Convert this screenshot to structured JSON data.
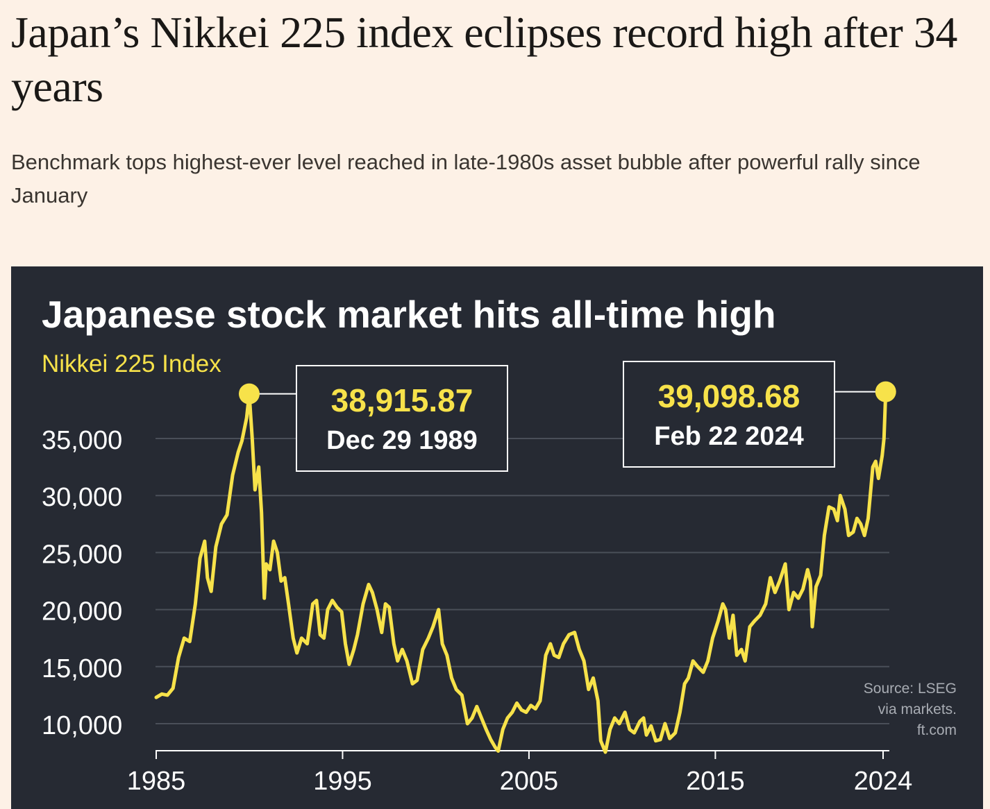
{
  "article": {
    "headline": "Japan’s Nikkei 225 index eclipses record high after 34 years",
    "standfirst": "Benchmark tops highest-ever level reached in late-1980s asset bubble after powerful rally since January"
  },
  "colors": {
    "page_background": "#fdf1e6",
    "panel_background": "#262a33",
    "series": "#f7e24a",
    "text_light": "#ffffff",
    "text_muted": "#a8acb3",
    "gridline": "#4a4f59"
  },
  "chart_data": {
    "type": "line",
    "title": "Japanese stock market hits all-time high",
    "subtitle": "Nikkei 225 Index",
    "xlabel": "",
    "ylabel": "",
    "xlim": [
      1985,
      2024.3
    ],
    "ylim": [
      7500,
      37000
    ],
    "x_ticks": [
      1985,
      1995,
      2005,
      2015,
      2024
    ],
    "x_tick_labels": [
      "1985",
      "1995",
      "2005",
      "2015",
      "2024"
    ],
    "y_ticks": [
      10000,
      15000,
      20000,
      25000,
      30000,
      35000
    ],
    "y_tick_labels": [
      "10,000",
      "15,000",
      "20,000",
      "25,000",
      "30,000",
      "35,000"
    ],
    "gridlines": true,
    "legend": "none",
    "source": [
      "Source: LSEG",
      "via markets.",
      "ft.com"
    ],
    "series": [
      {
        "name": "Nikkei 225 Index",
        "points": [
          [
            1985.0,
            12300
          ],
          [
            1985.3,
            12600
          ],
          [
            1985.6,
            12500
          ],
          [
            1985.9,
            13100
          ],
          [
            1986.2,
            15800
          ],
          [
            1986.5,
            17500
          ],
          [
            1986.8,
            17200
          ],
          [
            1987.1,
            20500
          ],
          [
            1987.35,
            24500
          ],
          [
            1987.6,
            26000
          ],
          [
            1987.75,
            22800
          ],
          [
            1987.95,
            21600
          ],
          [
            1988.2,
            25500
          ],
          [
            1988.5,
            27500
          ],
          [
            1988.8,
            28300
          ],
          [
            1989.1,
            31800
          ],
          [
            1989.4,
            33800
          ],
          [
            1989.6,
            34800
          ],
          [
            1989.85,
            36800
          ],
          [
            1989.99,
            38915.87
          ],
          [
            1990.15,
            35000
          ],
          [
            1990.3,
            30500
          ],
          [
            1990.5,
            32500
          ],
          [
            1990.65,
            28500
          ],
          [
            1990.8,
            21000
          ],
          [
            1990.9,
            24000
          ],
          [
            1991.1,
            23500
          ],
          [
            1991.3,
            26000
          ],
          [
            1991.5,
            25000
          ],
          [
            1991.7,
            22500
          ],
          [
            1991.9,
            22800
          ],
          [
            1992.1,
            20500
          ],
          [
            1992.35,
            17500
          ],
          [
            1992.55,
            16200
          ],
          [
            1992.8,
            17500
          ],
          [
            1993.1,
            17000
          ],
          [
            1993.4,
            20500
          ],
          [
            1993.6,
            20800
          ],
          [
            1993.8,
            17800
          ],
          [
            1994.0,
            17500
          ],
          [
            1994.2,
            20000
          ],
          [
            1994.45,
            20800
          ],
          [
            1994.7,
            20200
          ],
          [
            1994.95,
            19800
          ],
          [
            1995.15,
            17000
          ],
          [
            1995.35,
            15200
          ],
          [
            1995.6,
            16500
          ],
          [
            1995.8,
            17800
          ],
          [
            1996.1,
            20500
          ],
          [
            1996.4,
            22200
          ],
          [
            1996.6,
            21500
          ],
          [
            1996.85,
            20000
          ],
          [
            1997.1,
            18000
          ],
          [
            1997.3,
            20500
          ],
          [
            1997.5,
            20200
          ],
          [
            1997.75,
            17000
          ],
          [
            1997.95,
            15500
          ],
          [
            1998.2,
            16500
          ],
          [
            1998.45,
            15500
          ],
          [
            1998.75,
            13500
          ],
          [
            1999.0,
            13800
          ],
          [
            1999.3,
            16500
          ],
          [
            1999.6,
            17500
          ],
          [
            1999.85,
            18500
          ],
          [
            2000.15,
            20000
          ],
          [
            2000.35,
            17000
          ],
          [
            2000.6,
            16000
          ],
          [
            2000.85,
            14000
          ],
          [
            2001.1,
            13000
          ],
          [
            2001.4,
            12500
          ],
          [
            2001.7,
            10000
          ],
          [
            2001.95,
            10500
          ],
          [
            2002.2,
            11500
          ],
          [
            2002.45,
            10500
          ],
          [
            2002.7,
            9500
          ],
          [
            2002.95,
            8600
          ],
          [
            2003.2,
            7900
          ],
          [
            2003.35,
            7600
          ],
          [
            2003.6,
            9500
          ],
          [
            2003.85,
            10500
          ],
          [
            2004.1,
            11000
          ],
          [
            2004.35,
            11800
          ],
          [
            2004.6,
            11200
          ],
          [
            2004.85,
            11000
          ],
          [
            2005.1,
            11600
          ],
          [
            2005.35,
            11300
          ],
          [
            2005.6,
            12000
          ],
          [
            2005.9,
            16000
          ],
          [
            2006.15,
            17000
          ],
          [
            2006.35,
            16000
          ],
          [
            2006.6,
            15800
          ],
          [
            2006.85,
            17000
          ],
          [
            2007.15,
            17800
          ],
          [
            2007.45,
            18000
          ],
          [
            2007.7,
            16500
          ],
          [
            2007.95,
            15500
          ],
          [
            2008.2,
            13000
          ],
          [
            2008.45,
            14000
          ],
          [
            2008.7,
            12000
          ],
          [
            2008.85,
            8500
          ],
          [
            2009.1,
            7500
          ],
          [
            2009.35,
            9500
          ],
          [
            2009.6,
            10500
          ],
          [
            2009.85,
            10000
          ],
          [
            2010.15,
            11000
          ],
          [
            2010.4,
            9500
          ],
          [
            2010.65,
            9200
          ],
          [
            2010.95,
            10200
          ],
          [
            2011.15,
            10500
          ],
          [
            2011.3,
            9000
          ],
          [
            2011.55,
            9800
          ],
          [
            2011.8,
            8500
          ],
          [
            2012.05,
            8600
          ],
          [
            2012.3,
            10000
          ],
          [
            2012.55,
            8700
          ],
          [
            2012.85,
            9200
          ],
          [
            2013.1,
            11000
          ],
          [
            2013.35,
            13500
          ],
          [
            2013.55,
            14000
          ],
          [
            2013.8,
            15500
          ],
          [
            2014.05,
            15000
          ],
          [
            2014.35,
            14500
          ],
          [
            2014.6,
            15500
          ],
          [
            2014.85,
            17500
          ],
          [
            2015.15,
            19000
          ],
          [
            2015.4,
            20500
          ],
          [
            2015.55,
            20000
          ],
          [
            2015.75,
            17500
          ],
          [
            2015.95,
            19500
          ],
          [
            2016.15,
            16000
          ],
          [
            2016.4,
            16500
          ],
          [
            2016.6,
            15500
          ],
          [
            2016.85,
            18500
          ],
          [
            2017.1,
            19000
          ],
          [
            2017.4,
            19500
          ],
          [
            2017.7,
            20500
          ],
          [
            2017.95,
            22800
          ],
          [
            2018.2,
            21500
          ],
          [
            2018.45,
            22500
          ],
          [
            2018.75,
            24000
          ],
          [
            2018.95,
            20000
          ],
          [
            2019.2,
            21500
          ],
          [
            2019.45,
            21000
          ],
          [
            2019.7,
            21800
          ],
          [
            2019.95,
            23500
          ],
          [
            2020.1,
            22500
          ],
          [
            2020.2,
            18500
          ],
          [
            2020.4,
            22000
          ],
          [
            2020.65,
            23000
          ],
          [
            2020.85,
            26500
          ],
          [
            2021.1,
            29000
          ],
          [
            2021.35,
            28800
          ],
          [
            2021.55,
            27800
          ],
          [
            2021.7,
            30000
          ],
          [
            2021.95,
            28800
          ],
          [
            2022.15,
            26500
          ],
          [
            2022.4,
            26800
          ],
          [
            2022.6,
            28000
          ],
          [
            2022.8,
            27500
          ],
          [
            2023.0,
            26500
          ],
          [
            2023.2,
            28000
          ],
          [
            2023.45,
            32500
          ],
          [
            2023.6,
            33000
          ],
          [
            2023.75,
            31500
          ],
          [
            2023.95,
            33500
          ],
          [
            2024.05,
            35000
          ],
          [
            2024.14,
            39098.68
          ]
        ]
      }
    ],
    "annotations": [
      {
        "name": "peak-1989",
        "value": 38915.87,
        "value_label": "38,915.87",
        "date_label": "Dec 29 1989",
        "x": 1989.99
      },
      {
        "name": "peak-2024",
        "value": 39098.68,
        "value_label": "39,098.68",
        "date_label": "Feb 22 2024",
        "x": 2024.14
      }
    ]
  }
}
